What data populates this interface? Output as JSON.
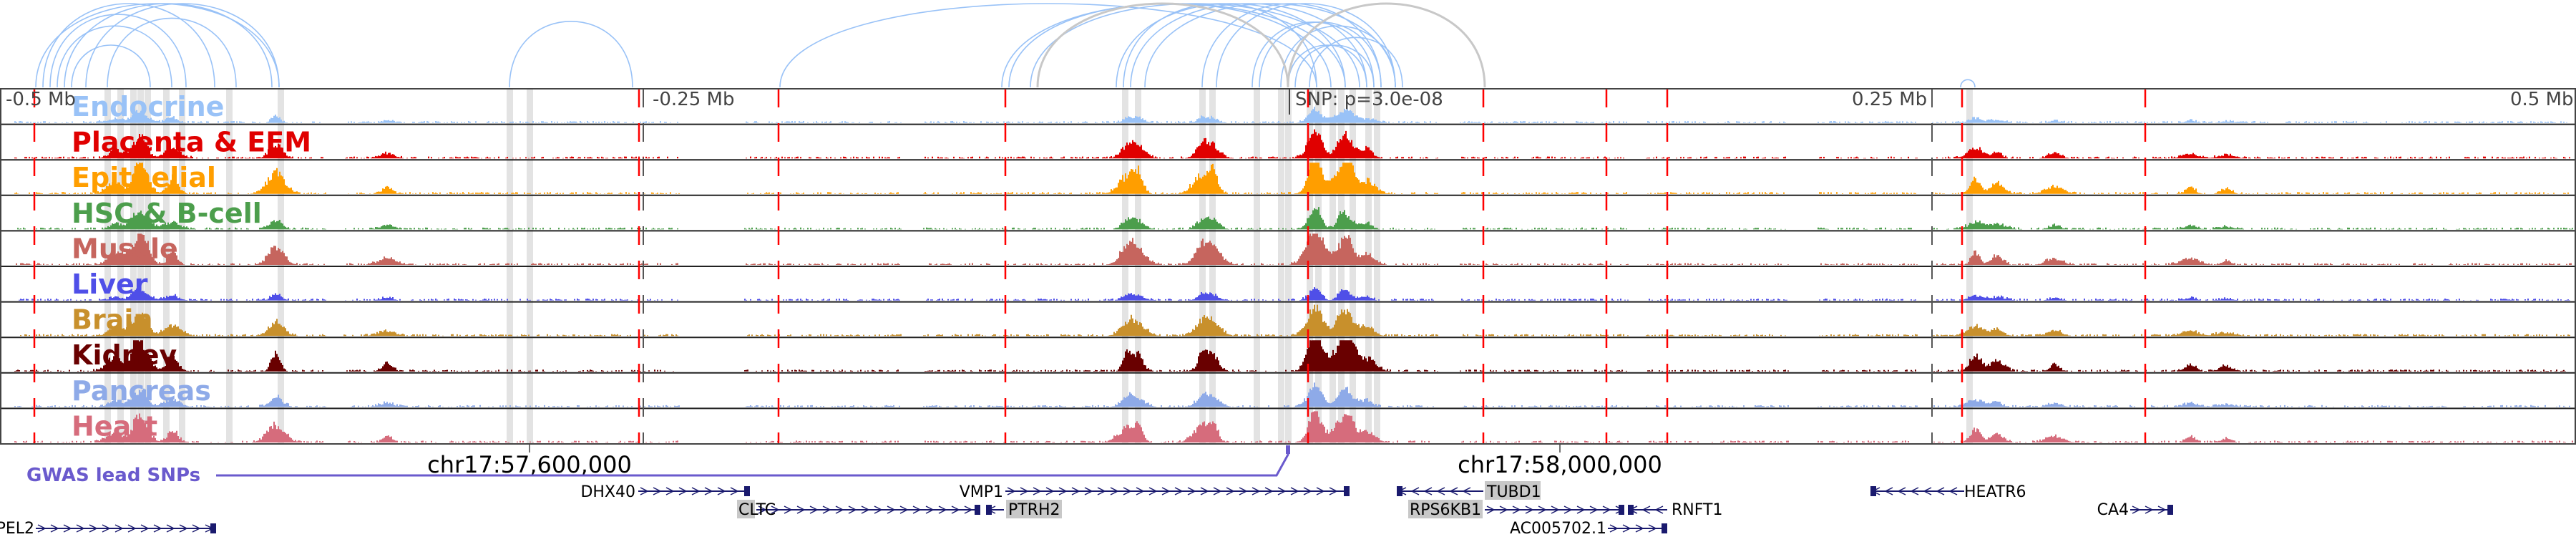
{
  "axis": {
    "left_far": "-0.5 Mb",
    "left_near": "-0.25 Mb",
    "snp_label": "SNP: p=3.0e-08",
    "right_near": "0.25 Mb",
    "right_far": "0.5 Mb"
  },
  "tracks": [
    {
      "label": "Endocrine",
      "color": "#99c2f7"
    },
    {
      "label": "Placenta & EEM",
      "color": "#e00000"
    },
    {
      "label": "Epithelial",
      "color": "#ff9e00"
    },
    {
      "label": "HSC & B-cell",
      "color": "#4c9e4c"
    },
    {
      "label": "Muscle",
      "color": "#c6655e"
    },
    {
      "label": "Liver",
      "color": "#4f4fe8"
    },
    {
      "label": "Brain",
      "color": "#c8902c"
    },
    {
      "label": "Kidney",
      "color": "#690000"
    },
    {
      "label": "Pancreas",
      "color": "#8eaae8"
    },
    {
      "label": "Heart",
      "color": "#d66c7c"
    }
  ],
  "coordinates": {
    "left": "chr17:57,600,000",
    "right": "chr17:58,000,000"
  },
  "gwas": {
    "label": "GWAS lead SNPs",
    "color": "#6a5acd"
  },
  "genes": {
    "dhx40": "DHX40",
    "cltc": "CLTC",
    "vmp1": "VMP1",
    "ptrh2": "PTRH2",
    "tubd1": "TUBD1",
    "rps6kb1": "RPS6KB1",
    "rnft1": "RNFT1",
    "ac005702": "AC005702.1",
    "heatr6": "HEATR6",
    "ca4": "CA4",
    "pel2": "PEL2"
  },
  "colors": {
    "arc": "#99c2f7",
    "arc_grey": "#c8c8c8",
    "highlight": "#e3e3e3",
    "marker": "#ff0000",
    "gene": "#1a1a6e"
  }
}
